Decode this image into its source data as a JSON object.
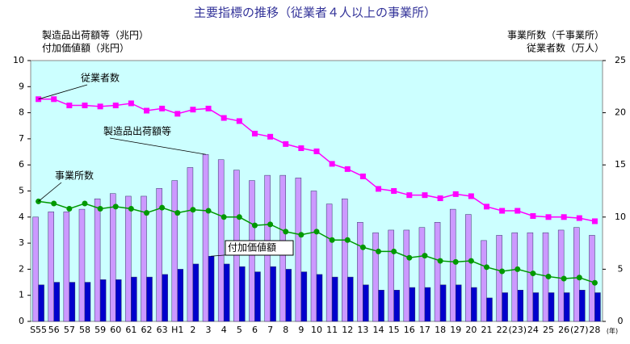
{
  "chart_data": {
    "type": "bar_line",
    "title": "主要指標の推移（従業者４人以上の事業所）",
    "y_axis_label_lines": [
      "製造品出荷額等（兆円）",
      "付加価値額（兆円）"
    ],
    "y2_axis_label_lines": [
      "事業所数（千事業所）",
      "従業者数（万人）"
    ],
    "x_unit": "(年)",
    "categories": [
      "S55",
      "56",
      "57",
      "58",
      "59",
      "60",
      "61",
      "62",
      "63",
      "H1",
      "2",
      "3",
      "4",
      "5",
      "6",
      "7",
      "8",
      "9",
      "10",
      "11",
      "12",
      "13",
      "14",
      "15",
      "16",
      "17",
      "18",
      "19",
      "20",
      "21",
      "22",
      "(23)",
      "24",
      "25",
      "26",
      "(27)",
      "28"
    ],
    "ylim": [
      0,
      10
    ],
    "yticks": [
      0,
      1,
      2,
      3,
      4,
      5,
      6,
      7,
      8,
      9,
      10
    ],
    "y2lim": [
      0,
      25
    ],
    "y2ticks": [
      0,
      5,
      10,
      15,
      20,
      25
    ],
    "series": [
      {
        "name": "製造品出荷額等",
        "type": "bar",
        "color": "#cc99ff",
        "axis": "y",
        "values": [
          4.0,
          4.2,
          4.2,
          4.3,
          4.7,
          4.9,
          4.8,
          4.8,
          5.1,
          5.4,
          5.9,
          6.4,
          6.2,
          5.8,
          5.4,
          5.6,
          5.6,
          5.5,
          5.0,
          4.5,
          4.7,
          3.8,
          3.4,
          3.5,
          3.5,
          3.6,
          3.8,
          4.3,
          4.1,
          3.1,
          3.3,
          3.4,
          3.4,
          3.4,
          3.5,
          3.6,
          3.3
        ]
      },
      {
        "name": "付加価値額",
        "type": "bar",
        "color": "#0000cc",
        "axis": "y",
        "values": [
          1.4,
          1.5,
          1.5,
          1.5,
          1.6,
          1.6,
          1.7,
          1.7,
          1.8,
          2.0,
          2.2,
          2.5,
          2.2,
          2.1,
          1.9,
          2.1,
          2.0,
          1.9,
          1.8,
          1.7,
          1.7,
          1.4,
          1.2,
          1.2,
          1.3,
          1.3,
          1.4,
          1.4,
          1.3,
          0.9,
          1.1,
          1.2,
          1.1,
          1.1,
          1.1,
          1.2,
          1.1
        ]
      },
      {
        "name": "従業者数",
        "type": "line",
        "color": "#ff00ff",
        "axis": "y2",
        "values": [
          21.3,
          21.3,
          20.7,
          20.7,
          20.6,
          20.7,
          20.9,
          20.2,
          20.4,
          19.9,
          20.3,
          20.4,
          19.5,
          19.2,
          18.0,
          17.7,
          17.0,
          16.6,
          16.3,
          15.1,
          14.6,
          13.9,
          12.7,
          12.5,
          12.1,
          12.1,
          11.8,
          12.2,
          12.0,
          11.0,
          10.6,
          10.6,
          10.1,
          10.0,
          10.0,
          9.9,
          9.6
        ]
      },
      {
        "name": "事業所数",
        "type": "line",
        "color": "#009900",
        "axis": "y2",
        "values": [
          11.5,
          11.3,
          10.8,
          11.3,
          10.8,
          11.0,
          10.8,
          10.4,
          10.9,
          10.4,
          10.7,
          10.6,
          10.0,
          10.0,
          9.2,
          9.3,
          8.6,
          8.3,
          8.6,
          7.8,
          7.8,
          7.1,
          6.7,
          6.7,
          6.1,
          6.3,
          5.8,
          5.7,
          5.8,
          5.2,
          4.8,
          5.0,
          4.6,
          4.3,
          4.1,
          4.2,
          3.7
        ]
      }
    ]
  }
}
